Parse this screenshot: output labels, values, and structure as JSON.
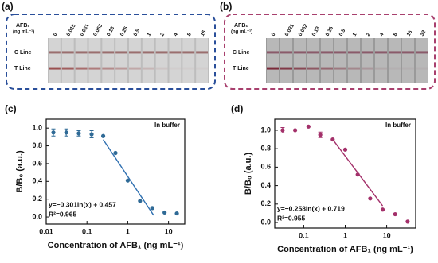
{
  "strip_panels": [
    {
      "label": "(a)",
      "analyte": "AFB₁",
      "unit": "(ng mL⁻¹)",
      "concentrations": [
        0,
        0.015,
        0.031,
        0.063,
        0.13,
        0.25,
        0.5,
        1,
        2,
        4,
        8,
        16
      ],
      "c_line": "C Line",
      "t_line": "T Line",
      "color": "#2a4f9a"
    },
    {
      "label": "(b)",
      "analyte": "AFB₁",
      "unit": "(ng mL⁻¹)",
      "concentrations": [
        0,
        0.031,
        0.062,
        0.13,
        0.25,
        0.5,
        1,
        2,
        4,
        8,
        16,
        32
      ],
      "c_line": "C Line",
      "t_line": "T Line",
      "color": "#a8406e"
    }
  ],
  "chart_data": [
    {
      "type": "scatter",
      "panel_label": "(c)",
      "annotation": "In buffer",
      "equation": "y=−0.301ln(x) + 0.457",
      "r2": "R²=0.965",
      "x_label": "Concentration of AFB₁ (ng mL⁻¹)",
      "y_label": "B/B₀ (a.u.)",
      "log_x": true,
      "x": [
        0.015,
        0.031,
        0.063,
        0.13,
        0.25,
        0.5,
        1,
        2,
        4,
        8,
        16
      ],
      "series": [
        {
          "color": "#2f6a96",
          "values": [
            0.95,
            0.95,
            0.94,
            0.93,
            0.91,
            0.72,
            0.41,
            0.18,
            0.1,
            0.05,
            0.04
          ],
          "errors": [
            0.04,
            0.04,
            0.03,
            0.04,
            null,
            null,
            null,
            null,
            null,
            null,
            null
          ]
        }
      ],
      "fit_line": {
        "color": "#2f6fb0",
        "x": [
          0.25,
          4.3
        ],
        "y": [
          0.87,
          0.02
        ]
      },
      "xlim": [
        0.01,
        25
      ],
      "xticks": [
        0.01,
        0.1,
        1,
        10
      ],
      "ylim": [
        -0.08,
        1.1
      ],
      "yticks": [
        {
          "value": 0,
          "label": "0.0"
        },
        0.2,
        0.4,
        0.6,
        0.8,
        {
          "value": 1,
          "label": "1.0"
        }
      ]
    },
    {
      "type": "scatter",
      "panel_label": "(d)",
      "annotation": "In buffer",
      "equation": "y=−0.258ln(x) + 0.719",
      "r2": "R²=0.955",
      "x_label": "Concentration of AFB₁ (ng mL⁻¹)",
      "y_label": "B/B₀ (a.u.)",
      "log_x": true,
      "x": [
        0.031,
        0.062,
        0.13,
        0.25,
        0.5,
        1,
        2,
        4,
        8,
        16,
        32
      ],
      "series": [
        {
          "color": "#a3306a",
          "values": [
            1.0,
            1.0,
            1.04,
            0.95,
            0.9,
            0.79,
            0.52,
            0.26,
            0.14,
            0.09,
            0.01
          ],
          "errors": [
            0.03,
            null,
            null,
            0.03,
            null,
            null,
            null,
            null,
            null,
            null,
            null
          ]
        }
      ],
      "fit_line": {
        "color": "#a3306a",
        "x": [
          0.5,
          8
        ],
        "y": [
          0.9,
          0.18
        ]
      },
      "xlim": [
        0.02,
        50
      ],
      "xticks": [
        0.1,
        1,
        10
      ],
      "ylim": [
        -0.06,
        1.12
      ],
      "yticks": [
        {
          "value": 0,
          "label": "0.0"
        },
        0.2,
        0.4,
        0.6,
        0.8,
        {
          "value": 1,
          "label": "1.0"
        }
      ]
    }
  ]
}
